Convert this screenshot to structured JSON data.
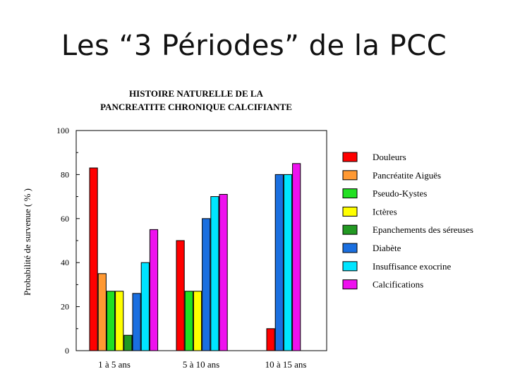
{
  "slide": {
    "title": "Les “3 Périodes” de la PCC"
  },
  "chart_data": {
    "type": "bar",
    "title_lines": [
      "HISTOIRE NATURELLE DE LA",
      "PANCREATITE CHRONIQUE CALCIFIANTE"
    ],
    "xlabel": "",
    "ylabel": "Probabilité de survenue ( % )",
    "ylim": [
      0,
      100
    ],
    "yticks": [
      0,
      20,
      40,
      60,
      80,
      100
    ],
    "grid": false,
    "legend_position": "right",
    "categories": [
      "1 à 5 ans",
      "5 à 10 ans",
      "10 à 15 ans"
    ],
    "series": [
      {
        "name": "Douleurs",
        "color": "#ff0000",
        "values": [
          83,
          50,
          10
        ]
      },
      {
        "name": "Pancréatite Aiguës",
        "color": "#ff9933",
        "values": [
          35,
          null,
          null
        ]
      },
      {
        "name": "Pseudo-Kystes",
        "color": "#22e022",
        "values": [
          27,
          27,
          null
        ]
      },
      {
        "name": "Ictères",
        "color": "#ffff00",
        "values": [
          27,
          27,
          null
        ]
      },
      {
        "name": "Epanchements des séreuses",
        "color": "#229922",
        "values": [
          7,
          null,
          null
        ]
      },
      {
        "name": "Diabète",
        "color": "#1a6fe0",
        "values": [
          26,
          60,
          80
        ]
      },
      {
        "name": "Insuffisance exocrine",
        "color": "#00e5ff",
        "values": [
          40,
          70,
          80
        ]
      },
      {
        "name": "Calcifications",
        "color": "#ee11ee",
        "values": [
          55,
          71,
          85
        ]
      }
    ]
  }
}
